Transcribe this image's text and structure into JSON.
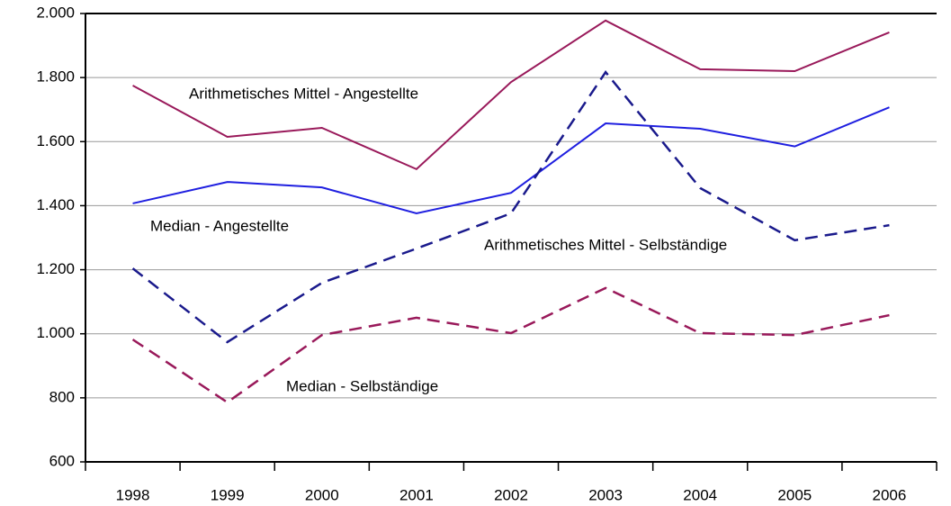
{
  "chart_data": {
    "type": "line",
    "categories": [
      "1998",
      "1999",
      "2000",
      "2001",
      "2002",
      "2003",
      "2004",
      "2005",
      "2006"
    ],
    "series": [
      {
        "name": "Arithmetisches Mittel - Angestellte",
        "color": "#99195a",
        "dash": false,
        "values": [
          1775,
          1615,
          1643,
          1514,
          1786,
          1978,
          1826,
          1820,
          1941
        ]
      },
      {
        "name": "Median - Angestellte",
        "color": "#1f1fe0",
        "dash": false,
        "values": [
          1407,
          1474,
          1457,
          1376,
          1440,
          1657,
          1640,
          1585,
          1707
        ]
      },
      {
        "name": "Arithmetisches Mittel - Selbständige",
        "color": "#1a1a8c",
        "dash": true,
        "values": [
          1204,
          974,
          1159,
          1266,
          1376,
          1817,
          1455,
          1292,
          1339
        ]
      },
      {
        "name": "Median - Selbständige",
        "color": "#99195a",
        "dash": true,
        "values": [
          982,
          786,
          996,
          1050,
          1002,
          1143,
          1002,
          996,
          1058
        ]
      }
    ],
    "ylim": [
      600,
      2000
    ],
    "yticks": [
      600,
      800,
      {
        "value": 1000,
        "label": "1.000"
      },
      {
        "value": 1200,
        "label": "1.200"
      },
      {
        "value": 1400,
        "label": "1.400"
      },
      {
        "value": 1600,
        "label": "1.600"
      },
      {
        "value": 1800,
        "label": "1.800"
      },
      {
        "value": 2000,
        "label": "2.000"
      }
    ],
    "grid": true
  }
}
